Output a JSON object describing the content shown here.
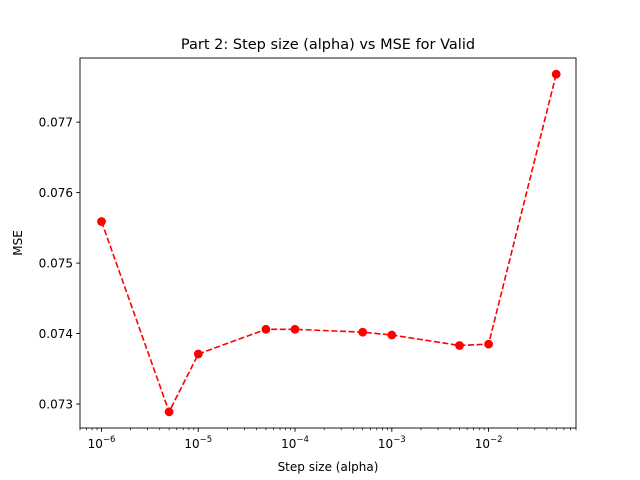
{
  "chart_data": {
    "type": "line",
    "title": "Part 2: Step size (alpha) vs MSE for Valid",
    "xlabel": "Step size (alpha)",
    "ylabel": "MSE",
    "x_scale": "log",
    "x_ticks": [
      {
        "value": 1e-06,
        "base": "10",
        "exp": "−6"
      },
      {
        "value": 1e-05,
        "base": "10",
        "exp": "−5"
      },
      {
        "value": 0.0001,
        "base": "10",
        "exp": "−4"
      },
      {
        "value": 0.001,
        "base": "10",
        "exp": "−3"
      },
      {
        "value": 0.01,
        "base": "10",
        "exp": "−2"
      }
    ],
    "y_ticks": [
      "0.073",
      "0.074",
      "0.075",
      "0.076",
      "0.077"
    ],
    "xlim": [
      6e-07,
      0.08
    ],
    "ylim": [
      0.07266,
      0.07791
    ],
    "grid": false,
    "series": [
      {
        "color": "#ff0000",
        "line_style": "dashed",
        "marker": "circle",
        "x": [
          1e-06,
          5e-06,
          1e-05,
          5e-05,
          0.0001,
          0.0005,
          0.001,
          0.005,
          0.01,
          0.05
        ],
        "y": [
          0.07559,
          0.07289,
          0.07371,
          0.07406,
          0.07406,
          0.07402,
          0.07398,
          0.07383,
          0.07385,
          0.07768
        ]
      }
    ]
  }
}
